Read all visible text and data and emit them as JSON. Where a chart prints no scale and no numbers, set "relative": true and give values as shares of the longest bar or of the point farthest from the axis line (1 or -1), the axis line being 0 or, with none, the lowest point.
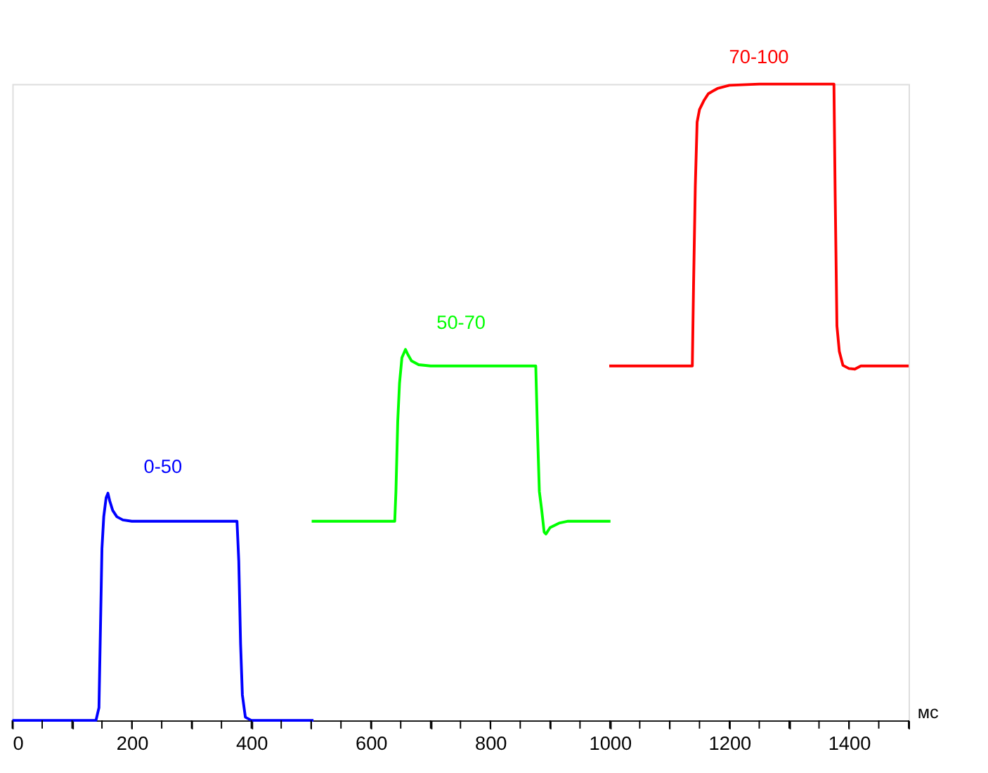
{
  "chart_data": {
    "type": "line",
    "relative": true,
    "xlabel": "мс",
    "xlim": [
      0,
      1500
    ],
    "xticks": [
      0,
      {
        "value": 50,
        "label": null
      },
      {
        "value": 100,
        "label": null
      },
      {
        "value": 150,
        "label": null
      },
      200,
      {
        "value": 250,
        "label": null
      },
      {
        "value": 300,
        "label": null
      },
      {
        "value": 350,
        "label": null
      },
      400,
      {
        "value": 450,
        "label": null
      },
      {
        "value": 500,
        "label": null
      },
      {
        "value": 550,
        "label": null
      },
      600,
      {
        "value": 650,
        "label": null
      },
      {
        "value": 700,
        "label": null
      },
      {
        "value": 750,
        "label": null
      },
      800,
      {
        "value": 850,
        "label": null
      },
      {
        "value": 900,
        "label": null
      },
      {
        "value": 950,
        "label": null
      },
      1000,
      {
        "value": 1050,
        "label": null
      },
      {
        "value": 1100,
        "label": null
      },
      {
        "value": 1150,
        "label": null
      },
      1200,
      {
        "value": 1250,
        "label": null
      },
      {
        "value": 1300,
        "label": null
      },
      {
        "value": 1350,
        "label": null
      },
      1400,
      {
        "value": 1450,
        "label": null
      },
      {
        "value": 1500,
        "label": null
      }
    ],
    "grid": false,
    "legend": false,
    "marker": "none",
    "line_style": "solid",
    "series": [
      {
        "name": "0-50",
        "color": "#0000ff",
        "x": [
          0,
          140,
          145,
          148,
          150,
          153,
          157,
          160,
          163,
          168,
          175,
          185,
          200,
          376,
          379,
          382,
          385,
          390,
          400,
          504
        ],
        "values": [
          0,
          0,
          0.02,
          0.17,
          0.27,
          0.32,
          0.35,
          0.357,
          0.345,
          0.33,
          0.32,
          0.315,
          0.313,
          0.313,
          0.25,
          0.12,
          0.04,
          0.005,
          0,
          0
        ]
      },
      {
        "name": "50-70",
        "color": "#00ff00",
        "x": [
          501,
          640,
          642,
          645,
          648,
          652,
          658,
          662,
          668,
          680,
          700,
          876,
          879,
          882,
          886,
          890,
          893,
          900,
          915,
          930,
          1001
        ],
        "values": [
          0.313,
          0.313,
          0.36,
          0.47,
          0.53,
          0.57,
          0.583,
          0.575,
          0.565,
          0.559,
          0.557,
          0.557,
          0.45,
          0.36,
          0.33,
          0.296,
          0.293,
          0.303,
          0.31,
          0.313,
          0.313
        ]
      },
      {
        "name": "70-100",
        "color": "#ff0000",
        "x": [
          999,
          1138,
          1140,
          1143,
          1146,
          1150,
          1158,
          1165,
          1180,
          1200,
          1250,
          1375,
          1377,
          1380,
          1384,
          1390,
          1400,
          1410,
          1420,
          1500
        ],
        "values": [
          0.557,
          0.557,
          0.68,
          0.84,
          0.94,
          0.96,
          0.975,
          0.985,
          0.993,
          0.998,
          1.0,
          1.0,
          0.83,
          0.62,
          0.58,
          0.558,
          0.553,
          0.552,
          0.557,
          0.557
        ]
      }
    ]
  }
}
